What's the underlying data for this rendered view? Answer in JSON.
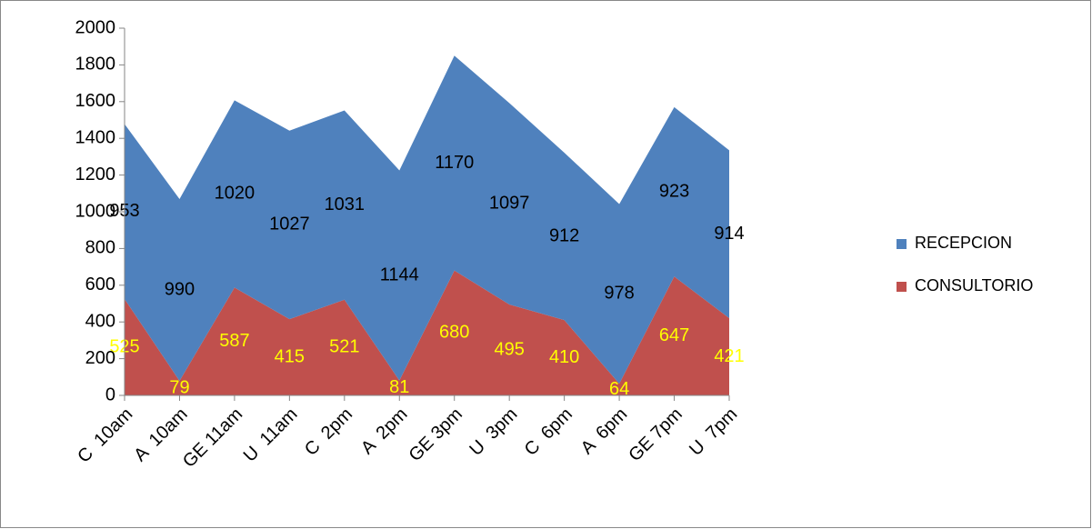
{
  "chart_data": {
    "type": "stacked_area",
    "categories": [
      "C  10am",
      "A  10am",
      "GE 11am",
      "U  11am",
      "C  2pm",
      "A  2pm",
      "GE 3pm",
      "U  3pm",
      "C  6pm",
      "A  6pm",
      "GE 7pm",
      "U  7pm"
    ],
    "series": [
      {
        "name": "CONSULTORIO",
        "color": "#c0504d",
        "label_color": "#ffff00",
        "values": [
          525,
          79,
          587,
          415,
          521,
          81,
          680,
          495,
          410,
          64,
          647,
          421
        ]
      },
      {
        "name": "RECEPCION",
        "color": "#4f81bd",
        "label_color": "#000000",
        "values": [
          953,
          990,
          1020,
          1027,
          1031,
          1144,
          1170,
          1097,
          912,
          978,
          923,
          914
        ]
      }
    ],
    "ylim": [
      0,
      2000
    ],
    "yticks": [
      0,
      200,
      400,
      600,
      800,
      1000,
      1200,
      1400,
      1600,
      1800,
      2000
    ],
    "legend": "right"
  }
}
